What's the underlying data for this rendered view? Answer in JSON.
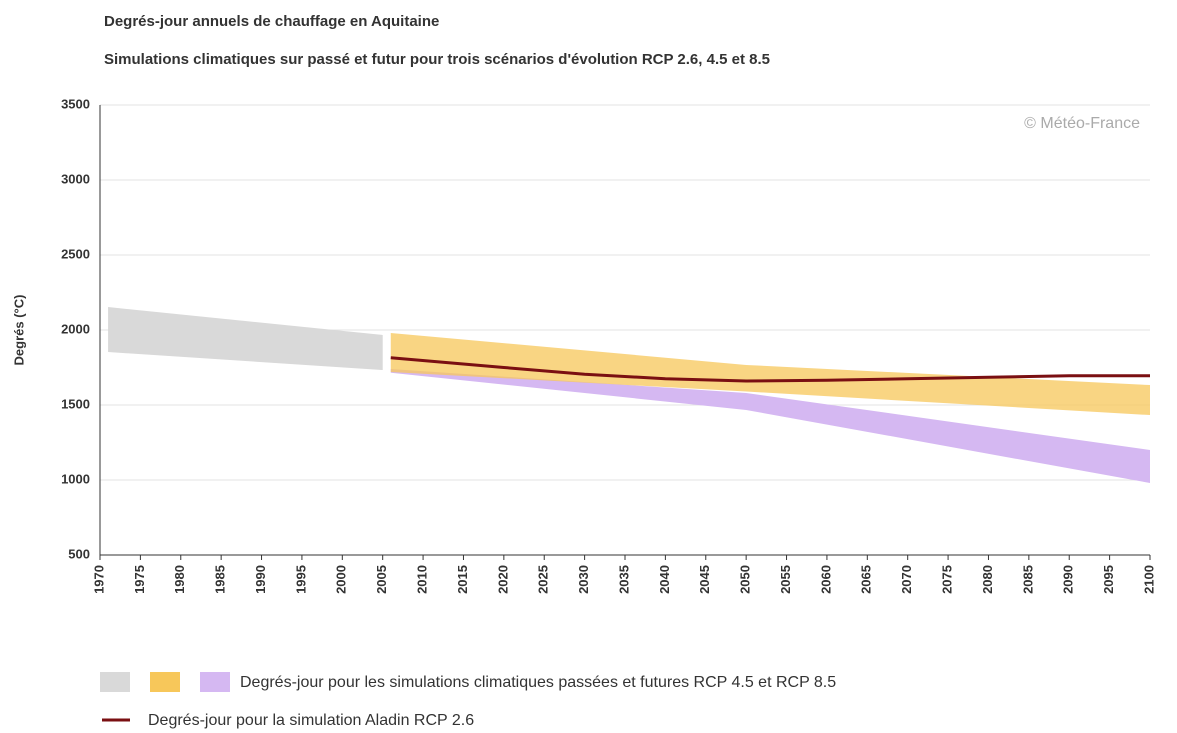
{
  "chart_data": {
    "type": "line",
    "title": "Degrés-jour annuels de chauffage en Aquitaine",
    "subtitle": "Simulations climatiques sur passé et futur pour trois scénarios d'évolution RCP 2.6, 4.5 et 8.5",
    "y_label": "Degrés (°C)",
    "annotation": "© Météo-France",
    "xlim": [
      1970,
      2100
    ],
    "xticks": [
      1970,
      1975,
      1980,
      1985,
      1990,
      1995,
      2000,
      2005,
      2010,
      2015,
      2020,
      2025,
      2030,
      2035,
      2040,
      2045,
      2050,
      2055,
      2060,
      2065,
      2070,
      2075,
      2080,
      2085,
      2090,
      2095,
      2100
    ],
    "ylim": [
      500,
      3500
    ],
    "yticks": [
      500,
      1000,
      1500,
      2000,
      2500,
      3000,
      3500
    ],
    "grid": true,
    "band_legend": "Degrés-jour pour les simulations climatiques passées et futures RCP 4.5 et RCP 8.5",
    "bands": [
      {
        "color": "#d9d9d9",
        "x": [
          1971,
          2005
        ],
        "lower": [
          1853,
          1733
        ],
        "upper": [
          2153,
          1967
        ]
      },
      {
        "color": "#d5b8f2",
        "x": [
          2006,
          2050,
          2100
        ],
        "lower": [
          1715,
          1467,
          980
        ],
        "upper": [
          1740,
          1580,
          1200
        ]
      },
      {
        "color": "#f7c75a",
        "x": [
          2006,
          2050,
          2100
        ],
        "lower": [
          1720,
          1590,
          1433
        ],
        "upper": [
          1980,
          1767,
          1633
        ]
      }
    ],
    "series": [
      {
        "name": "Degrés-jour pour la simulation Aladin RCP 2.6",
        "color": "#7a0f12",
        "x": [
          2006,
          2020,
          2030,
          2040,
          2050,
          2060,
          2070,
          2080,
          2090,
          2100
        ],
        "values": [
          1815,
          1750,
          1705,
          1675,
          1660,
          1665,
          1675,
          1685,
          1695,
          1695
        ]
      }
    ]
  }
}
